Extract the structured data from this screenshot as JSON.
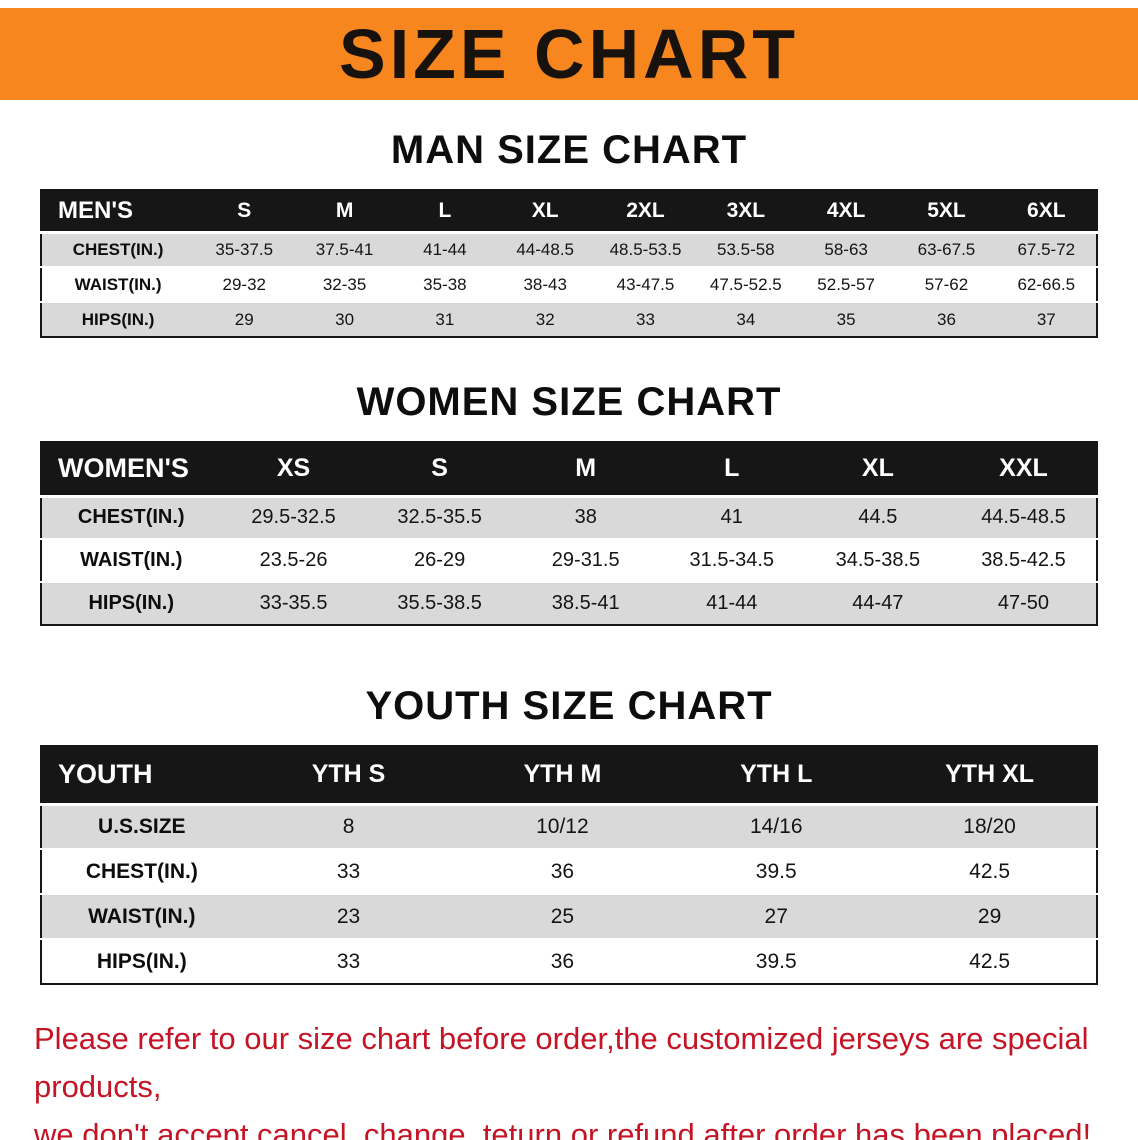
{
  "banner": {
    "title": "SIZE CHART",
    "bg_color": "#F6861D"
  },
  "sections": [
    {
      "heading": "MAN SIZE CHART",
      "table": {
        "header": [
          "MEN'S",
          "S",
          "M",
          "L",
          "XL",
          "2XL",
          "3XL",
          "4XL",
          "5XL",
          "6XL"
        ],
        "rows": [
          [
            "CHEST(IN.)",
            "35-37.5",
            "37.5-41",
            "41-44",
            "44-48.5",
            "48.5-53.5",
            "53.5-58",
            "58-63",
            "63-67.5",
            "67.5-72"
          ],
          [
            "WAIST(IN.)",
            "29-32",
            "32-35",
            "35-38",
            "38-43",
            "43-47.5",
            "47.5-52.5",
            "52.5-57",
            "57-62",
            "62-66.5"
          ],
          [
            "HIPS(IN.)",
            "29",
            "30",
            "31",
            "32",
            "33",
            "34",
            "35",
            "36",
            "37"
          ]
        ]
      }
    },
    {
      "heading": "WOMEN SIZE CHART",
      "table": {
        "header": [
          "WOMEN'S",
          "XS",
          "S",
          "M",
          "L",
          "XL",
          "XXL"
        ],
        "rows": [
          [
            "CHEST(IN.)",
            "29.5-32.5",
            "32.5-35.5",
            "38",
            "41",
            "44.5",
            "44.5-48.5"
          ],
          [
            "WAIST(IN.)",
            "23.5-26",
            "26-29",
            "29-31.5",
            "31.5-34.5",
            "34.5-38.5",
            "38.5-42.5"
          ],
          [
            "HIPS(IN.)",
            "33-35.5",
            "35.5-38.5",
            "38.5-41",
            "41-44",
            "44-47",
            "47-50"
          ]
        ]
      }
    },
    {
      "heading": "YOUTH SIZE CHART",
      "table": {
        "header": [
          "YOUTH",
          "YTH S",
          "YTH M",
          "YTH L",
          "YTH XL"
        ],
        "rows": [
          [
            "U.S.SIZE",
            "8",
            "10/12",
            "14/16",
            "18/20"
          ],
          [
            "CHEST(IN.)",
            "33",
            "36",
            "39.5",
            "42.5"
          ],
          [
            "WAIST(IN.)",
            "23",
            "25",
            "27",
            "29"
          ],
          [
            "HIPS(IN.)",
            "33",
            "36",
            "39.5",
            "42.5"
          ]
        ]
      }
    }
  ],
  "footer": {
    "lines": [
      "Please refer to our size chart before order,the customized jerseys are special products,",
      "we don't accept cancel, change, teturn or refund after order has been placed!"
    ],
    "text_color": "#C41425"
  }
}
